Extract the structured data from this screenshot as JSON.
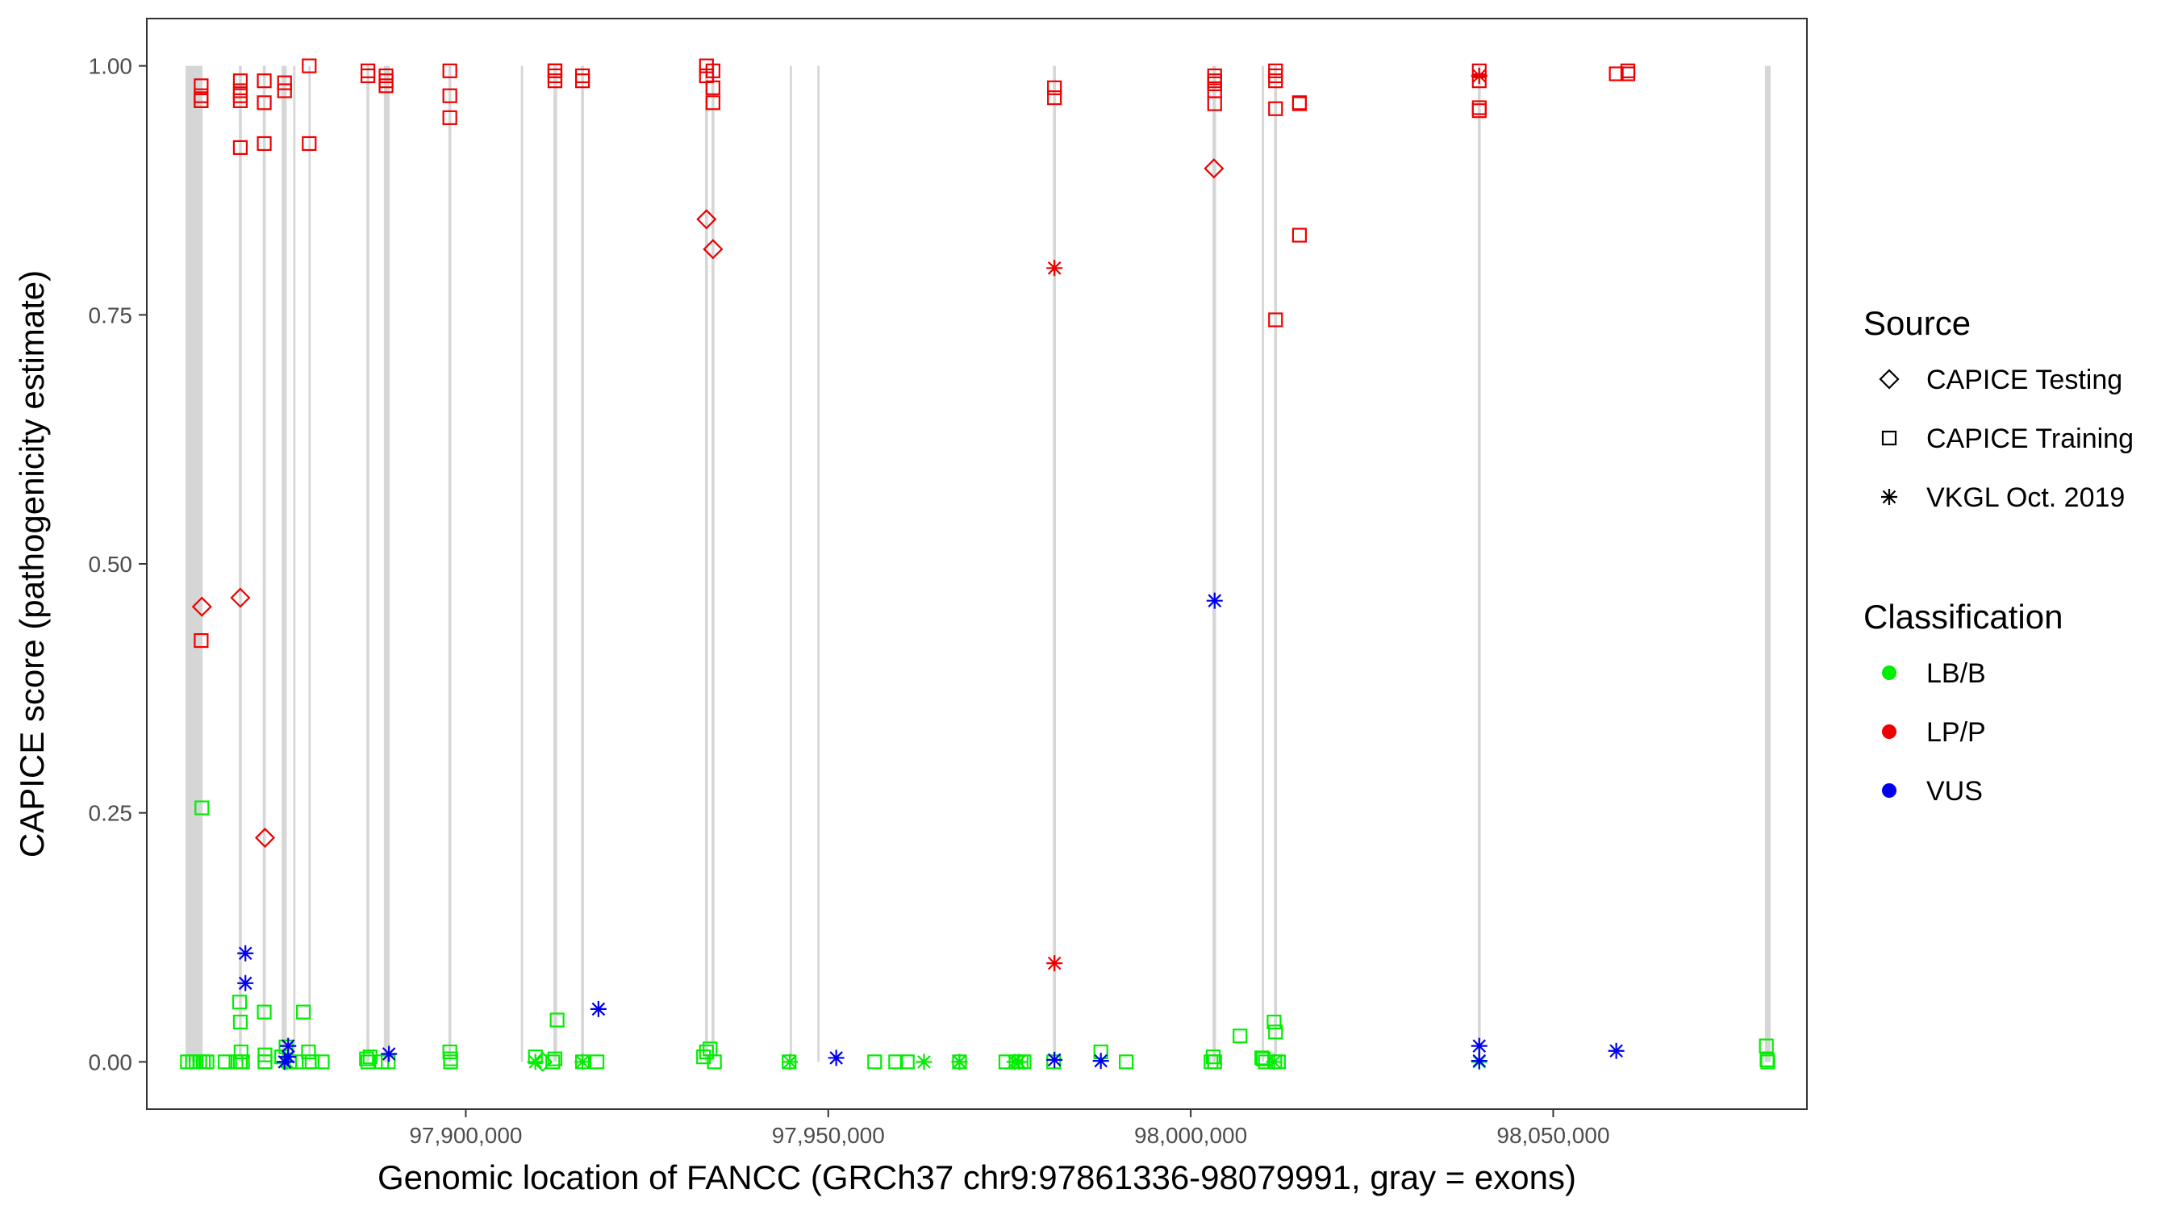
{
  "chart_data": {
    "type": "scatter",
    "xlabel": "Genomic location of FANCC (GRCh37 chr9:97861336-98079991, gray = exons)",
    "ylabel": "CAPICE score (pathogenicity estimate)",
    "xlim": [
      97856000,
      98085000
    ],
    "ylim": [
      -0.0475,
      1.0475
    ],
    "x_ticks": [
      97900000,
      97950000,
      98000000,
      98050000
    ],
    "x_tick_labels": [
      "97,900,000",
      "97,950,000",
      "98,000,000",
      "98,050,000"
    ],
    "y_ticks": [
      0,
      0.25,
      0.5,
      0.75,
      1.0
    ],
    "y_tick_labels": [
      "0.00",
      "0.25",
      "0.50",
      "0.75",
      "1.00"
    ],
    "grid": false,
    "exons": [
      [
        97861336,
        97863700
      ],
      [
        97868700,
        97869100
      ],
      [
        97872000,
        97872400
      ],
      [
        97874600,
        97875300
      ],
      [
        97876200,
        97876500
      ],
      [
        97878300,
        97878600
      ],
      [
        97886300,
        97886700
      ],
      [
        97888700,
        97889500
      ],
      [
        97897600,
        97898000
      ],
      [
        97907600,
        97907900
      ],
      [
        97912100,
        97912600
      ],
      [
        97915900,
        97916300
      ],
      [
        97933000,
        97933400
      ],
      [
        97933900,
        97934300
      ],
      [
        97944700,
        97945000
      ],
      [
        97948500,
        97948800
      ],
      [
        97981000,
        97981400
      ],
      [
        98003000,
        98003500
      ],
      [
        98009800,
        98010100
      ],
      [
        98011500,
        98011900
      ],
      [
        98039600,
        98040000
      ],
      [
        98079200,
        98079991
      ]
    ],
    "legend": {
      "position": "right",
      "source": {
        "title": "Source",
        "items": [
          {
            "key": "testing",
            "label": "CAPICE Testing",
            "shape": "diamond"
          },
          {
            "key": "training",
            "label": "CAPICE Training",
            "shape": "square"
          },
          {
            "key": "vkgl",
            "label": "VKGL Oct. 2019",
            "shape": "asterisk"
          }
        ]
      },
      "classification": {
        "title": "Classification",
        "items": [
          {
            "key": "LB/B",
            "label": "LB/B",
            "color": "#00ee00"
          },
          {
            "key": "LP/P",
            "label": "LP/P",
            "color": "#ee0000"
          },
          {
            "key": "VUS",
            "label": "VUS",
            "color": "#0000ee"
          }
        ]
      }
    },
    "series": [
      {
        "source": "training",
        "class": "LP/P",
        "x": [
          97863500,
          97863500,
          97863500,
          97863500,
          97863500,
          97868900,
          97868900,
          97868900,
          97868900,
          97868900,
          97872200,
          97872200,
          97872200,
          97875000,
          97875000,
          97878400,
          97878400,
          97886500,
          97886500,
          97889000,
          97889000,
          97889000,
          97897800,
          97897800,
          97897800,
          97912300,
          97912300,
          97912300,
          97912300,
          97916100,
          97916100,
          97933200,
          97933200,
          97934100,
          97934100,
          97934100,
          97981200,
          97981200,
          98003300,
          98003300,
          98003300,
          98003300,
          98003300,
          98011700,
          98011700,
          98011700,
          98011700,
          98011700,
          98015000,
          98015000,
          98015000,
          98039800,
          98039800,
          98039800,
          98039800,
          98058700,
          98060300,
          98060300
        ],
        "y": [
          0.423,
          0.97,
          0.98,
          0.965,
          0.965,
          0.975,
          0.985,
          0.965,
          0.97,
          0.918,
          0.985,
          0.963,
          0.922,
          0.983,
          0.975,
          1.0,
          0.922,
          0.99,
          0.995,
          0.98,
          0.99,
          0.985,
          0.995,
          0.97,
          0.948,
          0.985,
          0.99,
          0.995,
          0.995,
          0.985,
          0.99,
          0.99,
          1.0,
          0.995,
          0.978,
          0.963,
          0.968,
          0.978,
          0.99,
          0.982,
          0.975,
          0.985,
          0.962,
          0.99,
          0.985,
          0.995,
          0.957,
          0.745,
          0.963,
          0.962,
          0.83,
          0.985,
          0.995,
          0.955,
          0.958,
          0.992,
          0.992,
          0.995
        ]
      },
      {
        "source": "training",
        "class": "LB/B",
        "x": [
          97861600,
          97862300,
          97862800,
          97863300,
          97863800,
          97864300,
          97863600,
          97866800,
          97868300,
          97868800,
          97868900,
          97869000,
          97868900,
          97869200,
          97872200,
          97872300,
          97872300,
          97872300,
          97874600,
          97875200,
          97875700,
          97876600,
          97877600,
          97878300,
          97878400,
          97878800,
          97880200,
          97886300,
          97886500,
          97886800,
          97888400,
          97889300,
          97897800,
          97897900,
          97897900,
          97909600,
          97912000,
          97912300,
          97912600,
          97916100,
          97918100,
          97932800,
          97933200,
          97933700,
          97934300,
          97944600,
          97956400,
          97959300,
          97960900,
          97968100,
          97974500,
          97975900,
          97976600,
          97977000,
          97981100,
          97987600,
          97991100,
          98002800,
          98003100,
          98003300,
          98006800,
          98009800,
          98010000,
          98010300,
          98011500,
          98011700,
          98012100,
          98079400,
          98079500,
          98079600,
          98011600
        ],
        "y": [
          0,
          0,
          0,
          0,
          0,
          0,
          0.255,
          0,
          0,
          0.06,
          0.04,
          0.01,
          0,
          0,
          0.05,
          0.007,
          0,
          0,
          0.005,
          0.015,
          0,
          0,
          0.05,
          0.01,
          0,
          0,
          0,
          0.003,
          0,
          0.005,
          0,
          0,
          0.01,
          0.003,
          0,
          0.005,
          0,
          0.003,
          0.042,
          0,
          0,
          0.005,
          0.01,
          0.013,
          0,
          0,
          0,
          0,
          0,
          0,
          0,
          0,
          0,
          0,
          0,
          0.01,
          0,
          0,
          0.005,
          0,
          0.026,
          0.004,
          0.003,
          0,
          0.04,
          0.03,
          0,
          0.016,
          0.002,
          0,
          0
        ]
      },
      {
        "source": "testing",
        "class": "LP/P",
        "x": [
          97863600,
          97868900,
          97872300,
          97933200,
          97934100,
          98003200
        ],
        "y": [
          0.457,
          0.466,
          0.225,
          0.846,
          0.816,
          0.897
        ]
      },
      {
        "source": "testing",
        "class": "LB/B",
        "x": [
          97910600
        ],
        "y": [
          0
        ]
      },
      {
        "source": "vkgl",
        "class": "LB/B",
        "x": [
          97875300,
          97909600,
          97916100,
          97944700,
          97963200,
          97968100,
          97968100,
          97975700,
          97976300,
          98011500,
          98039800
        ],
        "y": [
          0,
          0,
          0,
          0,
          0,
          0,
          0,
          0,
          0,
          0,
          0
        ]
      },
      {
        "source": "vkgl",
        "class": "LP/P",
        "x": [
          97981200,
          97981200,
          98039800
        ],
        "y": [
          0.797,
          0.099,
          0.99
        ]
      },
      {
        "source": "vkgl",
        "class": "VUS",
        "x": [
          97869600,
          97869600,
          97875500,
          97875500,
          97875000,
          97889400,
          97918300,
          97951100,
          97981200,
          97987600,
          98003300,
          98039800,
          98039800,
          98058700
        ],
        "y": [
          0.109,
          0.079,
          0.016,
          0.005,
          0,
          0.008,
          0.053,
          0.004,
          0.002,
          0.001,
          0.463,
          0.016,
          0.001,
          0.011
        ]
      }
    ]
  }
}
